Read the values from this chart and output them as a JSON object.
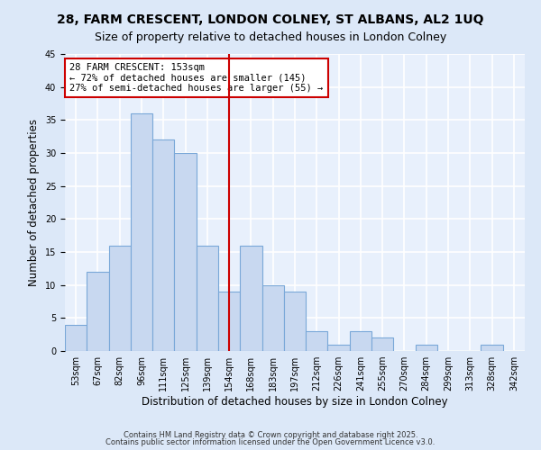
{
  "title": "28, FARM CRESCENT, LONDON COLNEY, ST ALBANS, AL2 1UQ",
  "subtitle": "Size of property relative to detached houses in London Colney",
  "xlabel": "Distribution of detached houses by size in London Colney",
  "ylabel": "Number of detached properties",
  "bin_labels": [
    "53sqm",
    "67sqm",
    "82sqm",
    "96sqm",
    "111sqm",
    "125sqm",
    "139sqm",
    "154sqm",
    "168sqm",
    "183sqm",
    "197sqm",
    "212sqm",
    "226sqm",
    "241sqm",
    "255sqm",
    "270sqm",
    "284sqm",
    "299sqm",
    "313sqm",
    "328sqm",
    "342sqm"
  ],
  "bar_values": [
    4,
    12,
    16,
    36,
    32,
    30,
    16,
    9,
    16,
    10,
    9,
    3,
    1,
    3,
    2,
    0,
    1,
    0,
    0,
    1,
    0
  ],
  "bar_color": "#c8d8f0",
  "bar_edge_color": "#7aa8d8",
  "vline_x_index": 7,
  "vline_color": "#cc0000",
  "annotation_text": "28 FARM CRESCENT: 153sqm\n← 72% of detached houses are smaller (145)\n27% of semi-detached houses are larger (55) →",
  "annotation_box_color": "#ffffff",
  "annotation_box_edge": "#cc0000",
  "ylim": [
    0,
    45
  ],
  "yticks": [
    0,
    5,
    10,
    15,
    20,
    25,
    30,
    35,
    40,
    45
  ],
  "footer1": "Contains HM Land Registry data © Crown copyright and database right 2025.",
  "footer2": "Contains public sector information licensed under the Open Government Licence v3.0.",
  "bg_color": "#dce8f8",
  "plot_bg_color": "#e8f0fc",
  "title_fontsize": 10,
  "subtitle_fontsize": 9,
  "tick_fontsize": 7,
  "label_fontsize": 8.5,
  "footer_fontsize": 6,
  "annot_fontsize": 7.5
}
